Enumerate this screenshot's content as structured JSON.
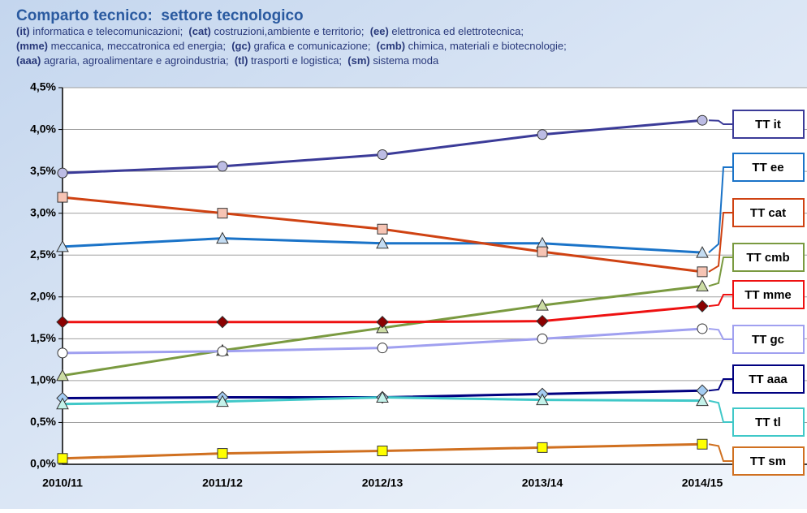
{
  "chart_data": {
    "type": "line",
    "title": "Comparto tecnico:  settore tecnologico",
    "subtitle_lines": [
      [
        "(it)",
        " informatica e telecomunicazioni;  ",
        "(cat)",
        " costruzioni,ambiente e territorio;  ",
        "(ee)",
        " elettronica ed elettrotecnica;"
      ],
      [
        "(mme)",
        " meccanica, meccatronica ed energia;  ",
        "(gc)",
        " grafica e comunicazione;  ",
        "(cmb)",
        " chimica, materiali e biotecnologie;"
      ],
      [
        "(aaa)",
        " agraria, agroalimentare e agroindustria;  ",
        "(tl)",
        " trasporti e logistica;  ",
        "(sm)",
        " sistema moda"
      ]
    ],
    "categories": [
      "2010/11",
      "2011/12",
      "2012/13",
      "2013/14",
      "2014/15"
    ],
    "ylim": [
      0,
      4.5
    ],
    "yticks": [
      {
        "value": 0,
        "label": "0,0%"
      },
      {
        "value": 0.5,
        "label": "0,5%"
      },
      {
        "value": 1,
        "label": "1,0%"
      },
      {
        "value": 1.5,
        "label": "1,5%"
      },
      {
        "value": 2,
        "label": "2,0%"
      },
      {
        "value": 2.5,
        "label": "2,5%"
      },
      {
        "value": 3,
        "label": "3,0%"
      },
      {
        "value": 3.5,
        "label": "3,5%"
      },
      {
        "value": 4,
        "label": "4,0%"
      },
      {
        "value": 4.5,
        "label": "4,5%"
      }
    ],
    "grid": true,
    "series": [
      {
        "name": "TT it",
        "color": "#3b3b98",
        "marker": "circle",
        "marker_color": "#bcbce4",
        "values": [
          3.48,
          3.56,
          3.7,
          3.94,
          4.11
        ]
      },
      {
        "name": "TT ee",
        "color": "#1a73c8",
        "marker": "triangle",
        "marker_color": "#c4dcf2",
        "values": [
          2.6,
          2.7,
          2.64,
          2.64,
          2.53
        ]
      },
      {
        "name": "TT cat",
        "color": "#cf4212",
        "marker": "square",
        "marker_color": "#f6c4b4",
        "values": [
          3.19,
          3.0,
          2.81,
          2.54,
          2.3
        ]
      },
      {
        "name": "TT cmb",
        "color": "#7a9a40",
        "marker": "triangle",
        "marker_color": "#ccdca4",
        "values": [
          1.06,
          1.36,
          1.63,
          1.9,
          2.13
        ]
      },
      {
        "name": "TT mme",
        "color": "#ee1111",
        "marker": "diamond",
        "marker_color": "#8b0000",
        "values": [
          1.7,
          1.7,
          1.7,
          1.71,
          1.89
        ]
      },
      {
        "name": "TT gc",
        "color": "#a0a0f0",
        "marker": "circle",
        "marker_color": "#ffffff",
        "values": [
          1.33,
          1.35,
          1.39,
          1.5,
          1.62
        ]
      },
      {
        "name": "TT aaa",
        "color": "#000080",
        "marker": "diamond",
        "marker_color": "#a4ccf2",
        "values": [
          0.79,
          0.8,
          0.8,
          0.84,
          0.88
        ]
      },
      {
        "name": "TT tl",
        "color": "#40c8c8",
        "marker": "triangle",
        "marker_color": "#c4f2ea",
        "values": [
          0.72,
          0.75,
          0.8,
          0.77,
          0.76
        ]
      },
      {
        "name": "TT sm",
        "color": "#d07020",
        "marker": "square",
        "marker_color": "#ffff00",
        "values": [
          0.07,
          0.13,
          0.16,
          0.2,
          0.24
        ]
      }
    ]
  }
}
